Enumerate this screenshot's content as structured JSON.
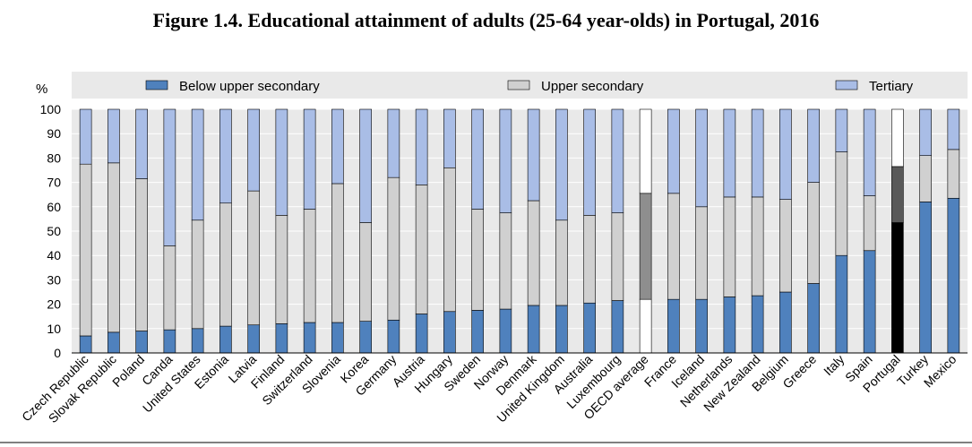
{
  "chart_data": {
    "type": "bar",
    "stacked": true,
    "title": "Figure 1.4. Educational attainment of adults (25-64 year-olds) in Portugal, 2016",
    "ylabel": "%",
    "ylim": [
      0,
      100
    ],
    "yticks": [
      0,
      10,
      20,
      30,
      40,
      50,
      60,
      70,
      80,
      90,
      100
    ],
    "legend_position": "top",
    "categories": [
      "Czech Republic",
      "Slovak Republic",
      "Poland",
      "Canda",
      "United States",
      "Estonia",
      "Latvia",
      "Finland",
      "Switzerland",
      "Slovenia",
      "Korea",
      "Germany",
      "Austria",
      "Hungary",
      "Sweden",
      "Norway",
      "Denmark",
      "United Kingdom",
      "Australia",
      "Luxembourg",
      "OECD average",
      "France",
      "Iceland",
      "Netherlands",
      "New Zealand",
      "Belgium",
      "Greece",
      "Italy",
      "Spain",
      "Portugal",
      "Turkey",
      "Mexico"
    ],
    "series": [
      {
        "name": "Below upper secondary",
        "color": "#4f81bd",
        "values": [
          7,
          8.5,
          9,
          9.5,
          10,
          11,
          11.5,
          12,
          12.5,
          12.5,
          13,
          13.5,
          16,
          17,
          17.5,
          18,
          19.5,
          19.5,
          20.5,
          21.5,
          22,
          22,
          22,
          23,
          23.5,
          25,
          28.5,
          40,
          42,
          53.5,
          62,
          63.5
        ]
      },
      {
        "name": "Upper secondary",
        "color": "#d0d0d0",
        "values": [
          70.5,
          69.5,
          62.5,
          34.5,
          44.5,
          50.5,
          55,
          44.5,
          46.5,
          57,
          40.5,
          58.5,
          53,
          59,
          41.5,
          39.5,
          43,
          35,
          36,
          36,
          43.5,
          43.5,
          38,
          41,
          40.5,
          38,
          41.5,
          42.5,
          22.5,
          23,
          19,
          20
        ]
      },
      {
        "name": "Tertiary",
        "color": "#a9bde6",
        "values": [
          22.5,
          22,
          28.5,
          56,
          45.5,
          38.5,
          33.5,
          43.5,
          41,
          30.5,
          46.5,
          28,
          31,
          24,
          41,
          42.5,
          37.5,
          45.5,
          43.5,
          42.5,
          34.5,
          34.5,
          40,
          36,
          36,
          37,
          30,
          17.5,
          35.5,
          23.5,
          19,
          16.5
        ]
      }
    ],
    "highlight": {
      "OECD average": {
        "colors": [
          "#ffffff",
          "#8e8e8e",
          "#ffffff"
        ]
      },
      "Portugal": {
        "colors": [
          "#000000",
          "#595959",
          "#ffffff"
        ]
      }
    }
  },
  "legend": {
    "items": [
      {
        "label": "Below upper secondary",
        "color": "#4f81bd"
      },
      {
        "label": "Upper secondary",
        "color": "#d0d0d0"
      },
      {
        "label": "Tertiary",
        "color": "#a9bde6"
      }
    ]
  }
}
